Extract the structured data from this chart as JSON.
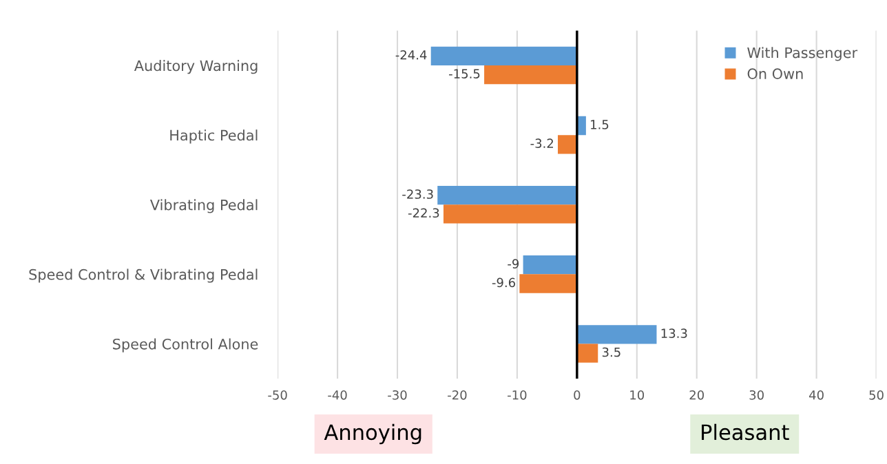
{
  "chart_data": {
    "type": "bar",
    "orientation": "horizontal",
    "categories": [
      "Auditory Warning",
      "Haptic Pedal",
      "Vibrating Pedal",
      "Speed Control & Vibrating Pedal",
      "Speed Control Alone"
    ],
    "series": [
      {
        "name": "With Passenger",
        "color": "#5b9bd5",
        "values": [
          -24.4,
          1.5,
          -23.3,
          -9,
          13.3
        ]
      },
      {
        "name": "On Own",
        "color": "#ed7d31",
        "values": [
          -15.5,
          -3.2,
          -22.3,
          -9.6,
          3.5
        ]
      }
    ],
    "xlim": [
      -50,
      50
    ],
    "xticks": [
      -50,
      -40,
      -30,
      -20,
      -10,
      0,
      10,
      20,
      30,
      40,
      50
    ],
    "ref_lines": [
      {
        "axis": "x",
        "value": 0,
        "color": "#000000"
      }
    ],
    "annotations": [
      "Annoying",
      "Pleasant"
    ],
    "grid": "x",
    "legend": "top right",
    "data_labels": true
  }
}
